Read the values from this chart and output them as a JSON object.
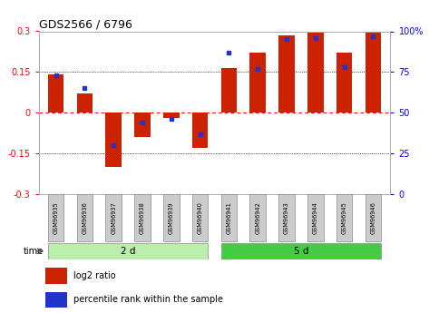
{
  "title": "GDS2566 / 6796",
  "samples": [
    "GSM96935",
    "GSM96936",
    "GSM96937",
    "GSM96938",
    "GSM96939",
    "GSM96940",
    "GSM96941",
    "GSM96942",
    "GSM96943",
    "GSM96944",
    "GSM96945",
    "GSM96946"
  ],
  "log2_ratio": [
    0.14,
    0.07,
    -0.2,
    -0.09,
    -0.02,
    -0.13,
    0.165,
    0.22,
    0.285,
    0.295,
    0.22,
    0.3
  ],
  "percentile_rank": [
    73,
    65,
    30,
    44,
    46,
    37,
    87,
    77,
    95,
    96,
    78,
    97
  ],
  "group1_label": "2 d",
  "group2_label": "5 d",
  "group1_count": 6,
  "group2_count": 6,
  "ylim_left": [
    -0.3,
    0.3
  ],
  "ylim_right": [
    0,
    100
  ],
  "yticks_left": [
    -0.3,
    -0.15,
    0.0,
    0.15,
    0.3
  ],
  "yticks_right": [
    0,
    25,
    50,
    75,
    100
  ],
  "ytick_labels_left": [
    "-0.3",
    "-0.15",
    "0",
    "0.15",
    "0.3"
  ],
  "ytick_labels_right": [
    "0",
    "25",
    "50",
    "75",
    "100%"
  ],
  "bar_color": "#cc2200",
  "dot_color": "#2233cc",
  "bg_color_group1": "#bbeeaa",
  "bg_color_group2": "#44cc44",
  "sample_box_color": "#cccccc",
  "legend_red": "log2 ratio",
  "legend_blue": "percentile rank within the sample",
  "bar_width": 0.55
}
